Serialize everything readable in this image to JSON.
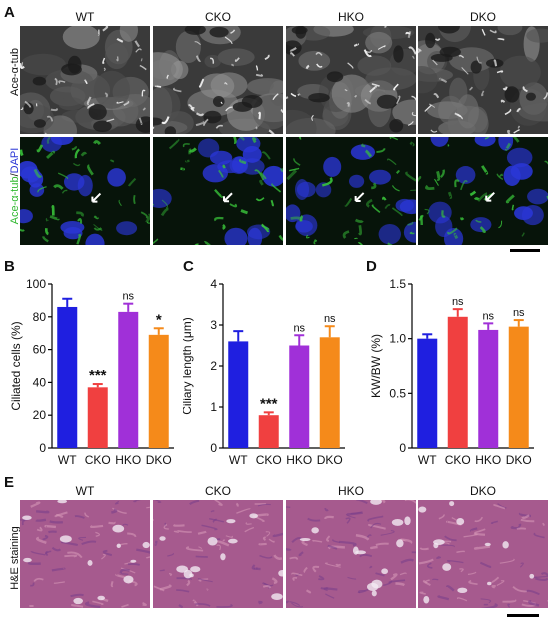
{
  "panels": {
    "A": "A",
    "B": "B",
    "C": "C",
    "D": "D",
    "E": "E"
  },
  "groups": [
    "WT",
    "CKO",
    "HKO",
    "DKO"
  ],
  "row_labels": {
    "ace_tub": "Ace-α-tub",
    "merge_ace": "Ace-α-tub",
    "merge_sep": "/",
    "merge_dapi": "DAPI",
    "he": "H&E staining"
  },
  "colors": {
    "WT": "#1f1fe0",
    "CKO": "#f04040",
    "HKO": "#a030d8",
    "DKO": "#f58a1a",
    "green_stain": "#39c43a",
    "blue_stain": "#2a36d6"
  },
  "chart_data": [
    {
      "type": "bar",
      "panel": "B",
      "categories": [
        "WT",
        "CKO",
        "HKO",
        "DKO"
      ],
      "values": [
        86,
        37,
        83,
        69
      ],
      "errors": [
        5,
        2,
        5,
        4
      ],
      "significance": [
        "",
        "***",
        "ns",
        "*"
      ],
      "ylabel": "Ciliated cells (%)",
      "ylim": [
        0,
        100
      ],
      "yticks": [
        "0",
        "20",
        "40",
        "60",
        "80",
        "100"
      ]
    },
    {
      "type": "bar",
      "panel": "C",
      "categories": [
        "WT",
        "CKO",
        "HKO",
        "DKO"
      ],
      "values": [
        2.6,
        0.8,
        2.5,
        2.7
      ],
      "errors": [
        0.25,
        0.07,
        0.25,
        0.27
      ],
      "significance": [
        "",
        "***",
        "ns",
        "ns"
      ],
      "ylabel": "Ciliary length (μm)",
      "ylim": [
        0,
        4
      ],
      "yticks": [
        "0",
        "1",
        "2",
        "3",
        "4"
      ]
    },
    {
      "type": "bar",
      "panel": "D",
      "categories": [
        "WT",
        "CKO",
        "HKO",
        "DKO"
      ],
      "values": [
        1.0,
        1.2,
        1.08,
        1.11
      ],
      "errors": [
        0.04,
        0.07,
        0.06,
        0.06
      ],
      "significance": [
        "",
        "ns",
        "ns",
        "ns"
      ],
      "ylabel": "KW/BW (%)",
      "ylim": [
        0,
        1.5
      ],
      "yticks": [
        "0",
        "0.5",
        "1.0",
        "1.5"
      ]
    }
  ]
}
